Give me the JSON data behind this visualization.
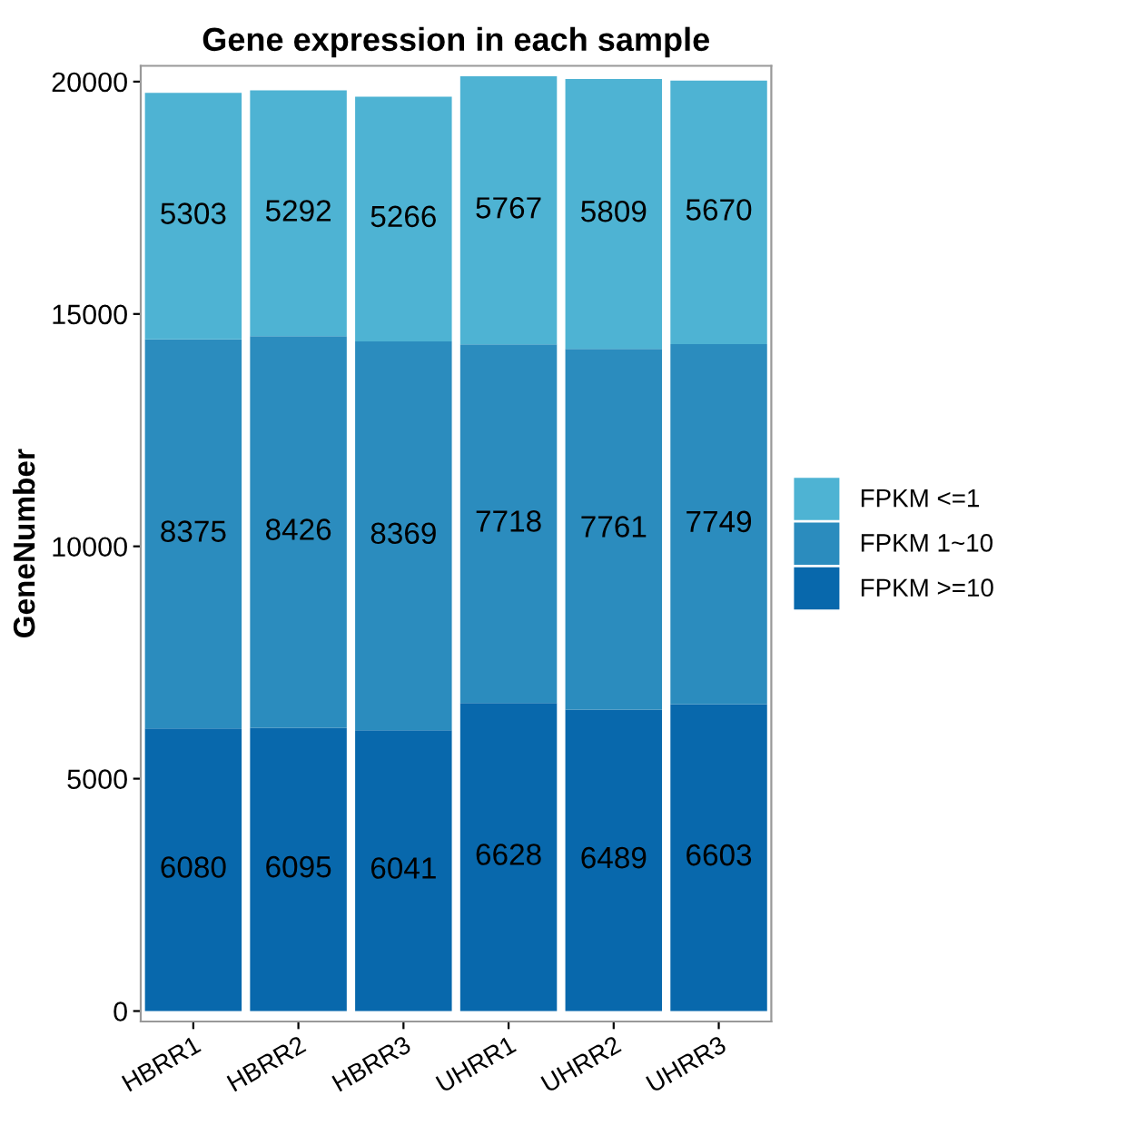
{
  "chart_data": {
    "type": "bar",
    "title": "Gene expression in each sample",
    "ylabel": "GeneNumber",
    "categories": [
      "HBRR1",
      "HBRR2",
      "HBRR3",
      "UHRR1",
      "UHRR2",
      "UHRR3"
    ],
    "stacked": true,
    "data_labels": true,
    "legend": "right",
    "grid": false,
    "ylim": [
      -225,
      20340
    ],
    "yticks": [
      0,
      5000,
      10000,
      15000,
      20000
    ],
    "series": [
      {
        "name": "FPKM >=10",
        "color": "#0868ac",
        "values": [
          6080,
          6095,
          6041,
          6628,
          6489,
          6603
        ]
      },
      {
        "name": "FPKM 1~10",
        "color": "#2b8cbe",
        "values": [
          8375,
          8426,
          8369,
          7718,
          7761,
          7749
        ]
      },
      {
        "name": "FPKM <=1",
        "color": "#4eb3d3",
        "values": [
          5303,
          5292,
          5266,
          5767,
          5809,
          5670
        ]
      }
    ]
  }
}
